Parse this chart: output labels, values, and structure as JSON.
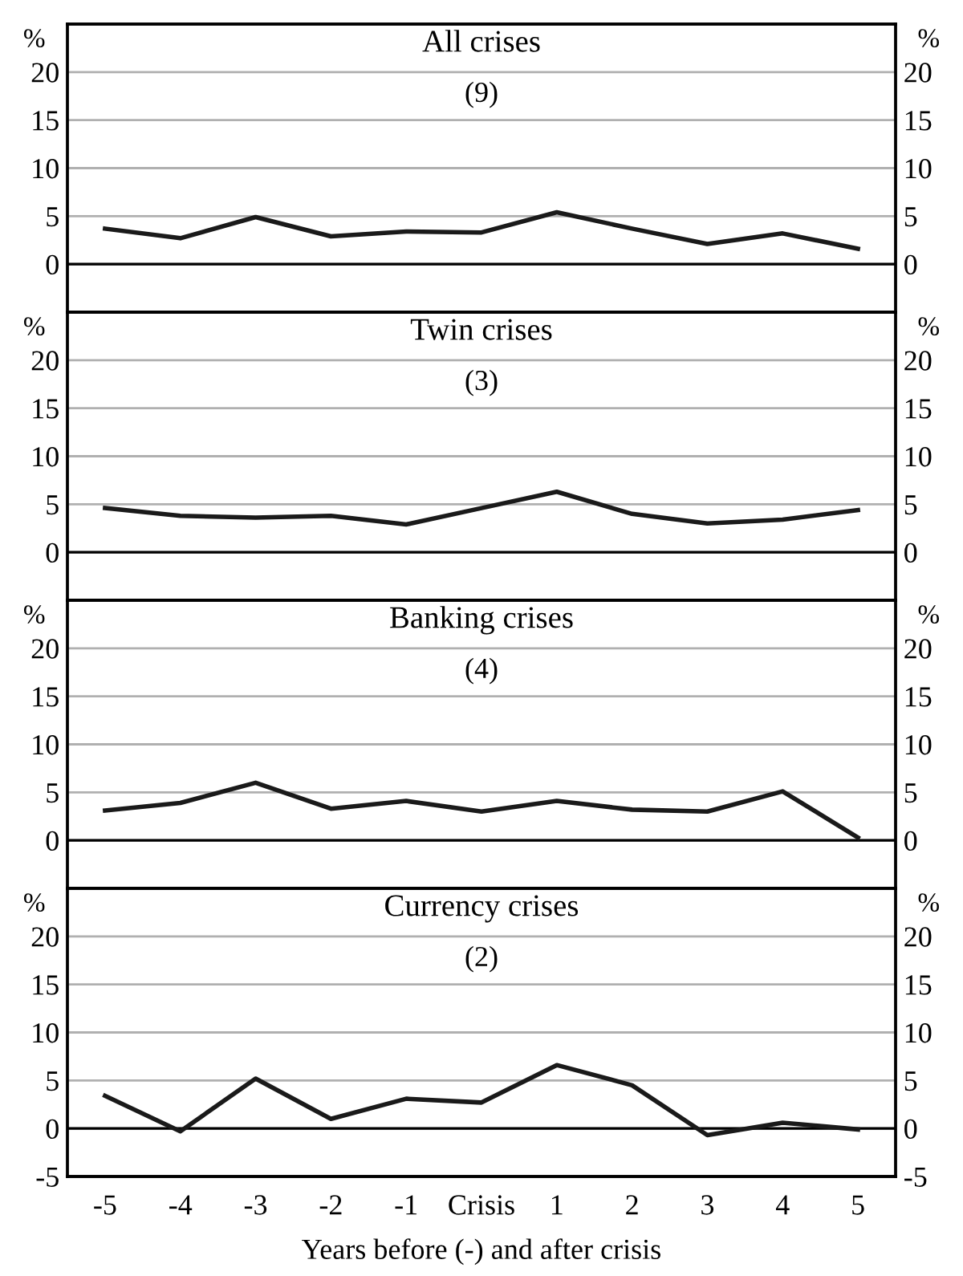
{
  "chart_data": [
    {
      "type": "line",
      "title": "All crises",
      "subtitle": "(9)",
      "ylabel": "%",
      "y2label": "%",
      "categories": [
        null,
        null,
        null,
        null,
        null,
        null,
        null,
        null,
        null,
        null,
        null
      ],
      "series": [
        {
          "color": "#1a1a1a",
          "values": [
            3.7,
            2.7,
            4.9,
            2.9,
            3.4,
            3.3,
            5.4,
            3.7,
            2.1,
            3.2,
            1.6
          ]
        }
      ],
      "ylim": [
        -5,
        25
      ],
      "yticks": [
        0,
        5,
        10,
        15,
        20
      ],
      "y2lim": [
        -5,
        25
      ],
      "y2ticks": [
        0,
        5,
        10,
        15,
        20
      ],
      "grid": "y",
      "ref_lines": [
        {
          "axis": "y",
          "value": 0,
          "color": "#000000"
        }
      ],
      "tick_labels": "y",
      "marker": "none",
      "line_style": "solid"
    },
    {
      "type": "line",
      "title": "Twin crises",
      "subtitle": "(3)",
      "ylabel": "%",
      "y2label": "%",
      "categories": [
        null,
        null,
        null,
        null,
        null,
        null,
        null,
        null,
        null,
        null,
        null
      ],
      "series": [
        {
          "color": "#1a1a1a",
          "values": [
            4.6,
            3.8,
            3.6,
            3.8,
            2.9,
            4.6,
            6.3,
            4.0,
            3.0,
            3.4,
            4.4
          ]
        }
      ],
      "ylim": [
        -5,
        25
      ],
      "yticks": [
        0,
        5,
        10,
        15,
        20
      ],
      "y2lim": [
        -5,
        25
      ],
      "y2ticks": [
        0,
        5,
        10,
        15,
        20
      ],
      "grid": "y",
      "ref_lines": [
        {
          "axis": "y",
          "value": 0,
          "color": "#000000"
        }
      ],
      "tick_labels": "y",
      "marker": "none",
      "line_style": "solid"
    },
    {
      "type": "line",
      "title": "Banking crises",
      "subtitle": "(4)",
      "ylabel": "%",
      "y2label": "%",
      "categories": [
        null,
        null,
        null,
        null,
        null,
        null,
        null,
        null,
        null,
        null,
        null
      ],
      "series": [
        {
          "color": "#1a1a1a",
          "values": [
            3.1,
            3.9,
            6.0,
            3.3,
            4.1,
            3.0,
            4.1,
            3.2,
            3.0,
            5.1,
            0.3
          ]
        }
      ],
      "ylim": [
        -5,
        25
      ],
      "yticks": [
        0,
        5,
        10,
        15,
        20
      ],
      "y2lim": [
        -5,
        25
      ],
      "y2ticks": [
        0,
        5,
        10,
        15,
        20
      ],
      "grid": "y",
      "ref_lines": [
        {
          "axis": "y",
          "value": 0,
          "color": "#000000"
        }
      ],
      "tick_labels": "y",
      "marker": "none",
      "line_style": "solid"
    },
    {
      "type": "line",
      "title": "Currency crises",
      "subtitle": "(2)",
      "ylabel": "%",
      "y2label": "%",
      "xlabel": "Years before (-) and after crisis",
      "categories": [
        "-5",
        "-4",
        "-3",
        "-2",
        "-1",
        "Crisis",
        "1",
        "2",
        "3",
        "4",
        "5"
      ],
      "series": [
        {
          "color": "#1a1a1a",
          "values": [
            3.4,
            -0.3,
            5.2,
            1.0,
            3.1,
            2.7,
            6.6,
            4.5,
            -0.7,
            0.6,
            -0.1
          ]
        }
      ],
      "ylim": [
        -5,
        25
      ],
      "yticks": [
        -5,
        0,
        5,
        10,
        15,
        20
      ],
      "y2lim": [
        -5,
        25
      ],
      "y2ticks": [
        -5,
        0,
        5,
        10,
        15,
        20
      ],
      "grid": "y",
      "ref_lines": [
        {
          "axis": "y",
          "value": 0,
          "color": "#000000"
        }
      ],
      "marker": "none",
      "line_style": "solid"
    }
  ]
}
